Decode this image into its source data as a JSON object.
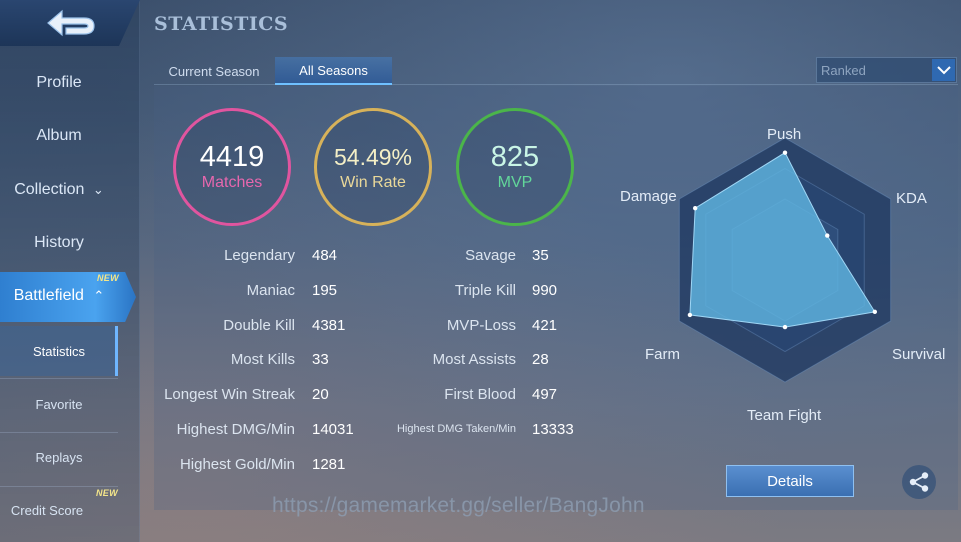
{
  "header": {
    "title": "STATISTICS"
  },
  "sidebar": {
    "items": [
      {
        "label": "Profile"
      },
      {
        "label": "Album"
      },
      {
        "label": "Collection"
      },
      {
        "label": "History"
      },
      {
        "label": "Battlefield",
        "badge": "NEW",
        "active": true
      },
      {
        "label": "Statistics",
        "active": true
      },
      {
        "label": "Favorite"
      },
      {
        "label": "Replays"
      },
      {
        "label": "Credit Score",
        "badge": "NEW"
      }
    ]
  },
  "tabs": [
    {
      "label": "Current Season"
    },
    {
      "label": "All Seasons",
      "active": true
    }
  ],
  "mode_select": {
    "value": "Ranked"
  },
  "summary": {
    "matches": {
      "value": "4419",
      "label": "Matches",
      "color": "#e0559f"
    },
    "win_rate": {
      "value": "54.49%",
      "label": "Win Rate",
      "color": "#d7b25a"
    },
    "mvp": {
      "value": "825",
      "label": "MVP",
      "color": "#4bb54a"
    }
  },
  "stats_left": [
    {
      "label": "Legendary",
      "value": "484"
    },
    {
      "label": "Maniac",
      "value": "195"
    },
    {
      "label": "Double Kill",
      "value": "4381"
    },
    {
      "label": "Most Kills",
      "value": "33"
    },
    {
      "label": "Longest Win Streak",
      "value": "20"
    },
    {
      "label": "Highest DMG/Min",
      "value": "14031"
    },
    {
      "label": "Highest Gold/Min",
      "value": "1281"
    }
  ],
  "stats_right": [
    {
      "label": "Savage",
      "value": "35"
    },
    {
      "label": "Triple Kill",
      "value": "990"
    },
    {
      "label": "MVP-Loss",
      "value": "421"
    },
    {
      "label": "Most Assists",
      "value": "28"
    },
    {
      "label": "First Blood",
      "value": "497"
    },
    {
      "label": "Highest DMG Taken/Min",
      "value": "13333"
    }
  ],
  "radar": {
    "axes": [
      {
        "label": "Push",
        "level": 0.88
      },
      {
        "label": "KDA",
        "level": 0.4
      },
      {
        "label": "Survival",
        "level": 0.85
      },
      {
        "label": "Team Fight",
        "level": 0.55
      },
      {
        "label": "Farm",
        "level": 0.9
      },
      {
        "label": "Damage",
        "level": 0.85
      }
    ],
    "fill_color": "#5fb4e0"
  },
  "actions": {
    "details_label": "Details",
    "share_icon": "share-icon"
  },
  "watermark": "https://gamemarket.gg/seller/BangJohn"
}
